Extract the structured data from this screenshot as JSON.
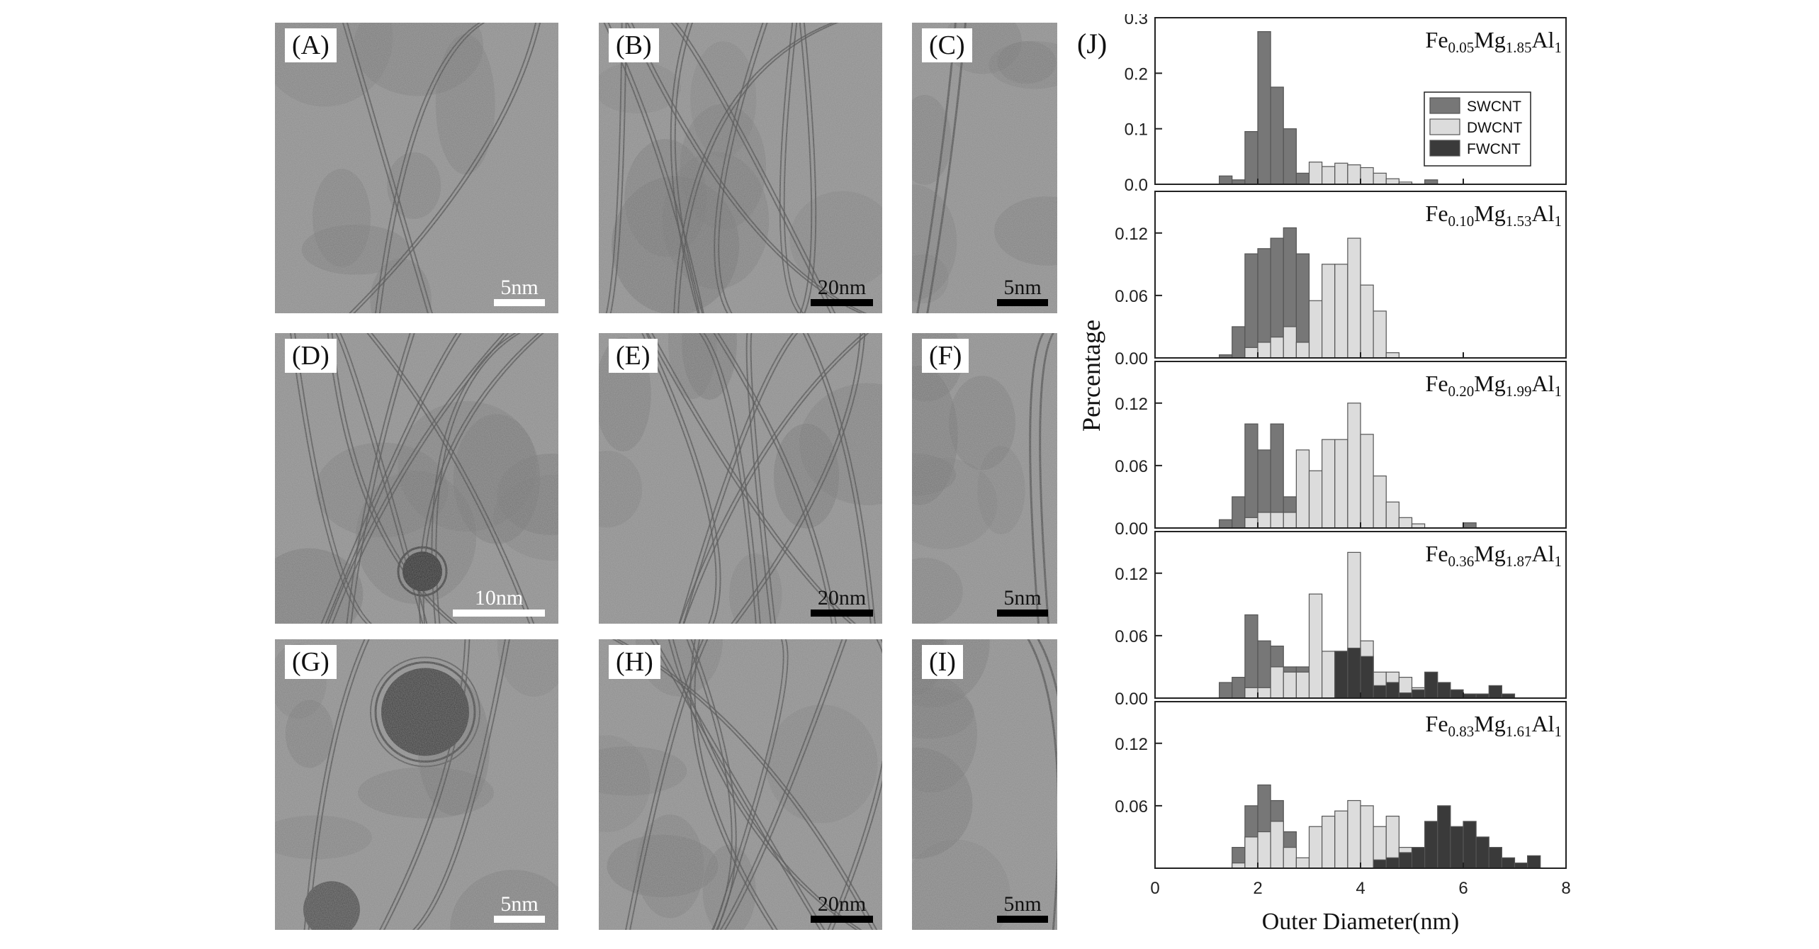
{
  "panels": [
    {
      "id": "A",
      "label": "(A)",
      "scale": "5nm",
      "scale_bar": "white"
    },
    {
      "id": "B",
      "label": "(B)",
      "scale": "20nm",
      "scale_bar": "black"
    },
    {
      "id": "C",
      "label": "(C)",
      "scale": "5nm",
      "scale_bar": "black"
    },
    {
      "id": "D",
      "label": "(D)",
      "scale": "10nm",
      "scale_bar": "white"
    },
    {
      "id": "E",
      "label": "(E)",
      "scale": "20nm",
      "scale_bar": "black"
    },
    {
      "id": "F",
      "label": "(F)",
      "scale": "5nm",
      "scale_bar": "black"
    },
    {
      "id": "G",
      "label": "(G)",
      "scale": "5nm",
      "scale_bar": "white"
    },
    {
      "id": "H",
      "label": "(H)",
      "scale": "20nm",
      "scale_bar": "black"
    },
    {
      "id": "I",
      "label": "(I)",
      "scale": "5nm",
      "scale_bar": "black"
    }
  ],
  "chart_label": "(J)",
  "chart_data": {
    "type": "bar",
    "xlabel": "Outer Diameter(nm)",
    "ylabel": "Percentage",
    "xlim": [
      0,
      8
    ],
    "xticks": [
      0,
      2,
      4,
      6,
      8
    ],
    "bin_width": 0.25,
    "legend": {
      "placement": "top-right of first subplot",
      "entries": [
        "SWCNT",
        "DWCNT",
        "FWCNT"
      ]
    },
    "colors": {
      "SWCNT": "#777777",
      "DWCNT": "#dcdcdc",
      "FWCNT": "#3a3a3a"
    },
    "subplots": [
      {
        "sample": {
          "p1": "Fe",
          "s1": "0.05",
          "p2": "Mg",
          "s2": "1.85",
          "p3": "Al",
          "s3": "1"
        },
        "ylim": [
          0,
          0.3
        ],
        "yticks": [
          "0.0",
          "0.1",
          "0.2",
          "0.3"
        ],
        "ytick_values": [
          0,
          0.1,
          0.2,
          0.3
        ],
        "series": [
          {
            "name": "SWCNT",
            "x": [
              1.375,
              1.625,
              1.875,
              2.125,
              2.375,
              2.625,
              2.875,
              5.375
            ],
            "values": [
              0.015,
              0.008,
              0.095,
              0.275,
              0.175,
              0.1,
              0.02,
              0.008
            ]
          },
          {
            "name": "DWCNT",
            "x": [
              3.125,
              3.375,
              3.625,
              3.875,
              4.125,
              4.375,
              4.625,
              4.875
            ],
            "values": [
              0.04,
              0.032,
              0.038,
              0.035,
              0.03,
              0.02,
              0.01,
              0.004
            ]
          }
        ]
      },
      {
        "sample": {
          "p1": "Fe",
          "s1": "0.10",
          "p2": "Mg",
          "s2": "1.53",
          "p3": "Al",
          "s3": "1"
        },
        "ylim": [
          0,
          0.16
        ],
        "yticks": [
          "0.00",
          "0.06",
          "0.12"
        ],
        "ytick_values": [
          0,
          0.06,
          0.12
        ],
        "series": [
          {
            "name": "SWCNT",
            "x": [
              1.375,
              1.625,
              1.875,
              2.125,
              2.375,
              2.625,
              2.875
            ],
            "values": [
              0.003,
              0.03,
              0.1,
              0.105,
              0.115,
              0.125,
              0.1
            ]
          },
          {
            "name": "DWCNT",
            "x": [
              1.875,
              2.125,
              2.375,
              2.625,
              2.875,
              3.125,
              3.375,
              3.625,
              3.875,
              4.125,
              4.375,
              4.625
            ],
            "values": [
              0.01,
              0.015,
              0.02,
              0.03,
              0.015,
              0.055,
              0.09,
              0.09,
              0.115,
              0.07,
              0.045,
              0.005
            ]
          }
        ]
      },
      {
        "sample": {
          "p1": "Fe",
          "s1": "0.20",
          "p2": "Mg",
          "s2": "1.99",
          "p3": "Al",
          "s3": "1"
        },
        "ylim": [
          0,
          0.16
        ],
        "yticks": [
          "0.00",
          "0.06",
          "0.12"
        ],
        "ytick_values": [
          0,
          0.06,
          0.12
        ],
        "series": [
          {
            "name": "SWCNT",
            "x": [
              1.375,
              1.625,
              1.875,
              2.125,
              2.375,
              2.625,
              6.125
            ],
            "values": [
              0.008,
              0.03,
              0.1,
              0.075,
              0.1,
              0.03,
              0.005
            ]
          },
          {
            "name": "DWCNT",
            "x": [
              1.875,
              2.125,
              2.375,
              2.625,
              2.875,
              3.125,
              3.375,
              3.625,
              3.875,
              4.125,
              4.375,
              4.625,
              4.875,
              5.125
            ],
            "values": [
              0.01,
              0.015,
              0.015,
              0.015,
              0.075,
              0.055,
              0.085,
              0.085,
              0.12,
              0.09,
              0.05,
              0.025,
              0.01,
              0.004
            ]
          }
        ]
      },
      {
        "sample": {
          "p1": "Fe",
          "s1": "0.36",
          "p2": "Mg",
          "s2": "1.87",
          "p3": "Al",
          "s3": "1"
        },
        "ylim": [
          0,
          0.16
        ],
        "yticks": [
          "0.00",
          "0.06",
          "0.12"
        ],
        "ytick_values": [
          0,
          0.06,
          0.12
        ],
        "series": [
          {
            "name": "SWCNT",
            "x": [
              1.375,
              1.625,
              1.875,
              2.125,
              2.375,
              2.625,
              2.875
            ],
            "values": [
              0.015,
              0.02,
              0.08,
              0.055,
              0.05,
              0.03,
              0.03
            ]
          },
          {
            "name": "DWCNT",
            "x": [
              1.875,
              2.125,
              2.375,
              2.625,
              2.875,
              3.125,
              3.375,
              3.625,
              3.875,
              4.125,
              4.375,
              4.625,
              4.875,
              5.125
            ],
            "values": [
              0.01,
              0.01,
              0.03,
              0.025,
              0.025,
              0.1,
              0.045,
              0.045,
              0.14,
              0.055,
              0.025,
              0.025,
              0.02,
              0.01
            ]
          },
          {
            "name": "FWCNT",
            "x": [
              3.625,
              3.875,
              4.125,
              4.375,
              4.625,
              4.875,
              5.125,
              5.375,
              5.625,
              5.875,
              6.125,
              6.375,
              6.625,
              6.875
            ],
            "values": [
              0.045,
              0.048,
              0.04,
              0.012,
              0.015,
              0.005,
              0.008,
              0.025,
              0.015,
              0.008,
              0.004,
              0.004,
              0.012,
              0.004
            ]
          }
        ]
      },
      {
        "sample": {
          "p1": "Fe",
          "s1": "0.83",
          "p2": "Mg",
          "s2": "1.61",
          "p3": "Al",
          "s3": "1"
        },
        "ylim": [
          0,
          0.16
        ],
        "yticks": [
          "0.06",
          "0.12"
        ],
        "ytick_values": [
          0.06,
          0.12
        ],
        "series": [
          {
            "name": "SWCNT",
            "x": [
              1.625,
              1.875,
              2.125,
              2.375,
              2.625
            ],
            "values": [
              0.02,
              0.06,
              0.08,
              0.065,
              0.035
            ]
          },
          {
            "name": "DWCNT",
            "x": [
              1.625,
              1.875,
              2.125,
              2.375,
              2.625,
              2.875,
              3.125,
              3.375,
              3.625,
              3.875,
              4.125,
              4.375,
              4.625,
              4.875
            ],
            "values": [
              0.005,
              0.03,
              0.035,
              0.045,
              0.02,
              0.01,
              0.04,
              0.05,
              0.055,
              0.065,
              0.06,
              0.04,
              0.05,
              0.02
            ]
          },
          {
            "name": "FWCNT",
            "x": [
              4.375,
              4.625,
              4.875,
              5.125,
              5.375,
              5.625,
              5.875,
              6.125,
              6.375,
              6.625,
              6.875,
              7.125,
              7.375
            ],
            "values": [
              0.008,
              0.01,
              0.015,
              0.02,
              0.045,
              0.06,
              0.04,
              0.045,
              0.03,
              0.02,
              0.01,
              0.005,
              0.012
            ]
          }
        ]
      }
    ]
  }
}
